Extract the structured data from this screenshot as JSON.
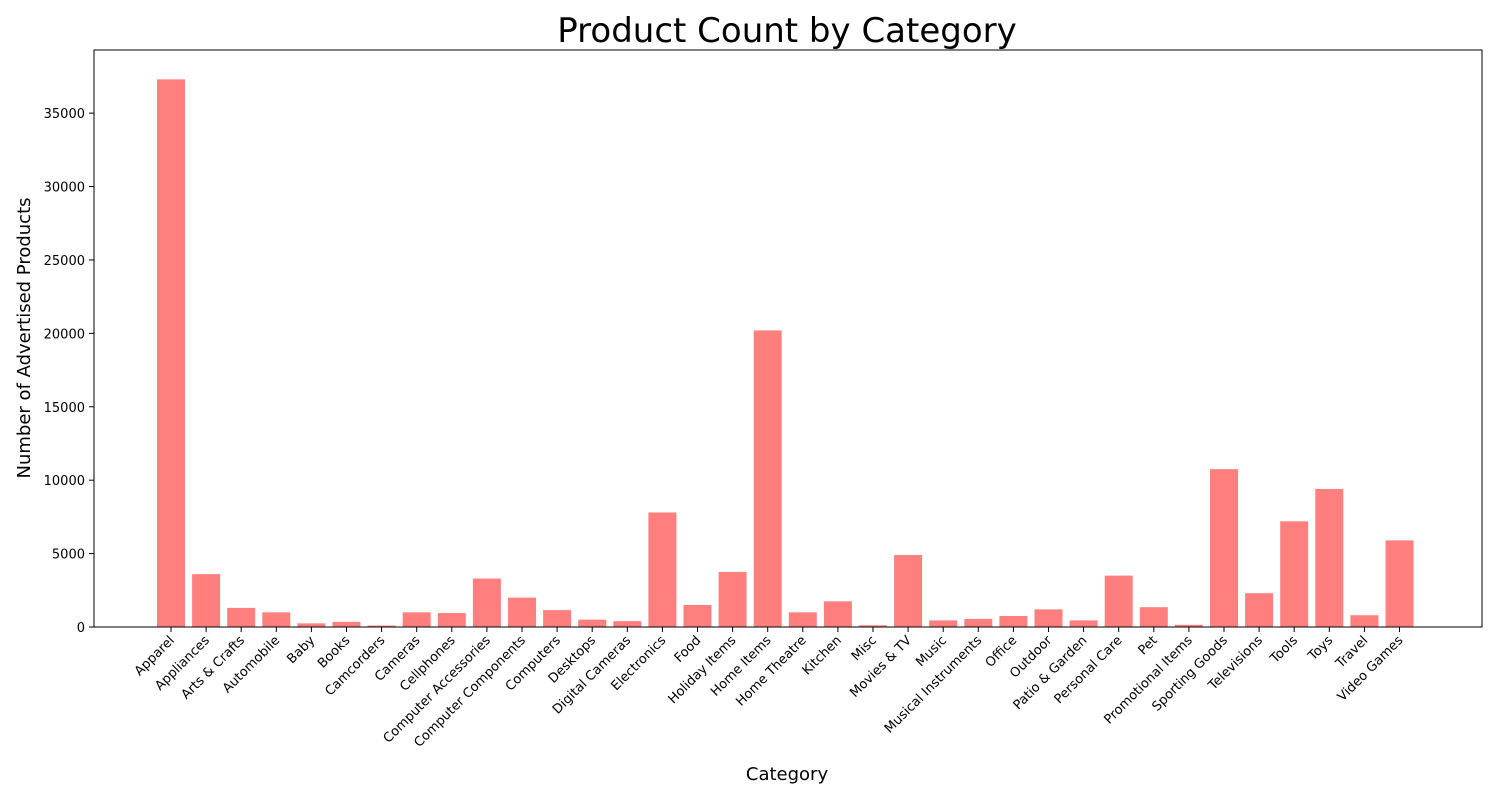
{
  "chart_data": {
    "type": "bar",
    "title": "Product Count by Category",
    "xlabel": "Category",
    "ylabel": "Number of Advertised Products",
    "ylim": [
      0,
      39300
    ],
    "yticks": [
      0,
      5000,
      10000,
      15000,
      20000,
      25000,
      30000,
      35000
    ],
    "grid": false,
    "bar_color": "#ff7f7f",
    "categories": [
      "Apparel",
      "Appliances",
      "Arts & Crafts",
      "Automobile",
      "Baby",
      "Books",
      "Camcorders",
      "Cameras",
      "Cellphones",
      "Computer Accessories",
      "Computer Components",
      "Computers",
      "Desktops",
      "Digital Cameras",
      "Electronics",
      "Food",
      "Holiday Items",
      "Home Items",
      "Home Theatre",
      "Kitchen",
      "Misc",
      "Movies & TV",
      "Music",
      "Musical Instruments",
      "Office",
      "Outdoor",
      "Patio & Garden",
      "Personal Care",
      "Pet",
      "Promotional Items",
      "Sporting Goods",
      "Televisions",
      "Tools",
      "Toys",
      "Travel",
      "Video Games"
    ],
    "values": [
      37300,
      3600,
      1300,
      1000,
      250,
      350,
      100,
      1000,
      950,
      3300,
      2000,
      1150,
      500,
      400,
      7800,
      1500,
      3750,
      20200,
      1000,
      1750,
      120,
      4900,
      450,
      550,
      750,
      1200,
      450,
      3500,
      1350,
      150,
      10750,
      2300,
      7200,
      9400,
      800,
      5900
    ]
  }
}
